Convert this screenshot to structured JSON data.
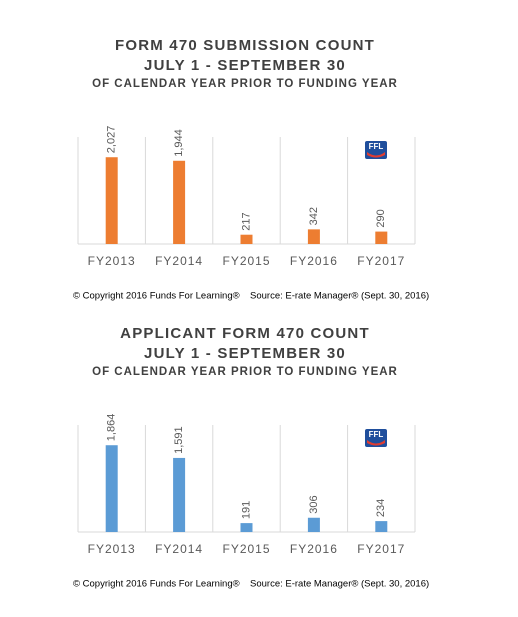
{
  "chart_data": [
    {
      "type": "bar",
      "title": "FORM 470 SUBMISSION COUNT",
      "subtitle": "JULY 1 - SEPTEMBER 30",
      "subtitle2": "OF CALENDAR YEAR PRIOR TO FUNDING YEAR",
      "categories": [
        "FY2013",
        "FY2014",
        "FY2015",
        "FY2016",
        "FY2017"
      ],
      "values": [
        2027,
        1944,
        217,
        342,
        290
      ],
      "value_labels": [
        "2,027",
        "1,944",
        "217",
        "342",
        "290"
      ],
      "color": "#ed7d31",
      "logo": "FFL",
      "copyright": "© Copyright 2016 Funds For Learning®",
      "source": "Source: E-rate Manager® (Sept. 30, 2016)"
    },
    {
      "type": "bar",
      "title": "APPLICANT FORM 470 COUNT",
      "subtitle": "JULY 1 - SEPTEMBER 30",
      "subtitle2": "OF CALENDAR YEAR PRIOR TO FUNDING YEAR",
      "categories": [
        "FY2013",
        "FY2014",
        "FY2015",
        "FY2016",
        "FY2017"
      ],
      "values": [
        1864,
        1591,
        191,
        306,
        234
      ],
      "value_labels": [
        "1,864",
        "1,591",
        "191",
        "306",
        "234"
      ],
      "color": "#5b9bd5",
      "logo": "FFL",
      "copyright": "© Copyright 2016 Funds For Learning®",
      "source": "Source: E-rate Manager® (Sept. 30, 2016)"
    }
  ]
}
